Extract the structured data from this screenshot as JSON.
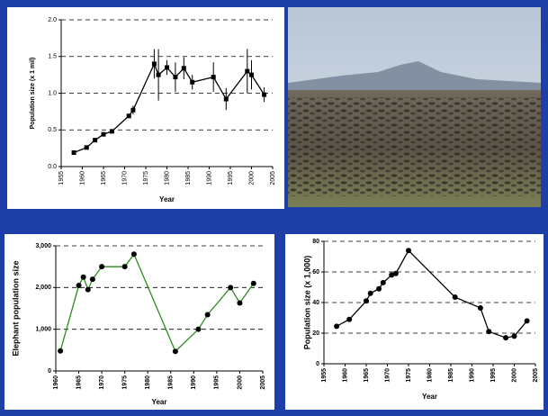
{
  "chart_data": [
    {
      "type": "line",
      "x_label": "Year",
      "y_label": "Population size (x 1 mil)",
      "x": [
        1958,
        1961,
        1963,
        1965,
        1967,
        1971,
        1972,
        1977,
        1978,
        1980,
        1982,
        1984,
        1986,
        1991,
        1994,
        1999,
        2000,
        2003
      ],
      "values": [
        0.19,
        0.26,
        0.36,
        0.44,
        0.48,
        0.69,
        0.77,
        1.4,
        1.25,
        1.35,
        1.22,
        1.34,
        1.15,
        1.22,
        0.92,
        1.3,
        1.25,
        0.98
      ],
      "errors": [
        null,
        null,
        null,
        null,
        null,
        null,
        0.06,
        0.2,
        0.35,
        0.1,
        0.2,
        0.15,
        0.1,
        0.2,
        0.15,
        0.3,
        0.2,
        0.1
      ],
      "xlim": [
        1955,
        2005
      ],
      "xticks": [
        1955,
        1960,
        1965,
        1970,
        1975,
        1980,
        1985,
        1990,
        1995,
        2000,
        2005
      ],
      "ylim": [
        0,
        2
      ],
      "yticks": [
        {
          "value": 0,
          "label": "0.0"
        },
        0.5,
        {
          "value": 1,
          "label": "1.0"
        },
        1.5,
        {
          "value": 2,
          "label": "2.0"
        }
      ],
      "color": "#000000",
      "marker_color": "#000000",
      "grid": true
    },
    {
      "type": "line",
      "x_label": "Year",
      "y_label": "Elephant population size",
      "x": [
        1961,
        1965,
        1966,
        1967,
        1968,
        1970,
        1975,
        1977,
        1986,
        1991,
        1993,
        1998,
        2000,
        2003
      ],
      "values": [
        480,
        2050,
        2250,
        1950,
        2200,
        2500,
        2500,
        2800,
        470,
        1000,
        1350,
        2000,
        1630,
        2100
      ],
      "xlim": [
        1960,
        2005
      ],
      "xticks": [
        1960,
        1965,
        1970,
        1975,
        1980,
        1985,
        1990,
        1995,
        2000,
        2005
      ],
      "ylim": [
        0,
        3000
      ],
      "yticks": [
        0,
        {
          "value": 1000,
          "label": "1,000"
        },
        {
          "value": 2000,
          "label": "2,000"
        },
        {
          "value": 3000,
          "label": "3,000"
        }
      ],
      "color": "#2e8b1e",
      "marker_color": "#000000",
      "grid": true
    },
    {
      "type": "line",
      "x_label": "Year",
      "y_label": "Population size (x 1,000)",
      "x": [
        1958,
        1961,
        1965,
        1966,
        1968,
        1969,
        1971,
        1972,
        1975,
        1986,
        1992,
        1994,
        1998,
        2000,
        2003
      ],
      "values": [
        24.5,
        29,
        41,
        46,
        49,
        53,
        58,
        59,
        74,
        43.5,
        36.5,
        21,
        17,
        18,
        28
      ],
      "xlim": [
        1955,
        2005
      ],
      "xticks": [
        1955,
        1960,
        1965,
        1970,
        1975,
        1980,
        1985,
        1990,
        1995,
        2000,
        2005
      ],
      "ylim": [
        0,
        80
      ],
      "yticks": [
        0,
        20,
        40,
        60,
        80
      ],
      "color": "#000000",
      "marker_color": "#000000",
      "grid": true
    }
  ]
}
